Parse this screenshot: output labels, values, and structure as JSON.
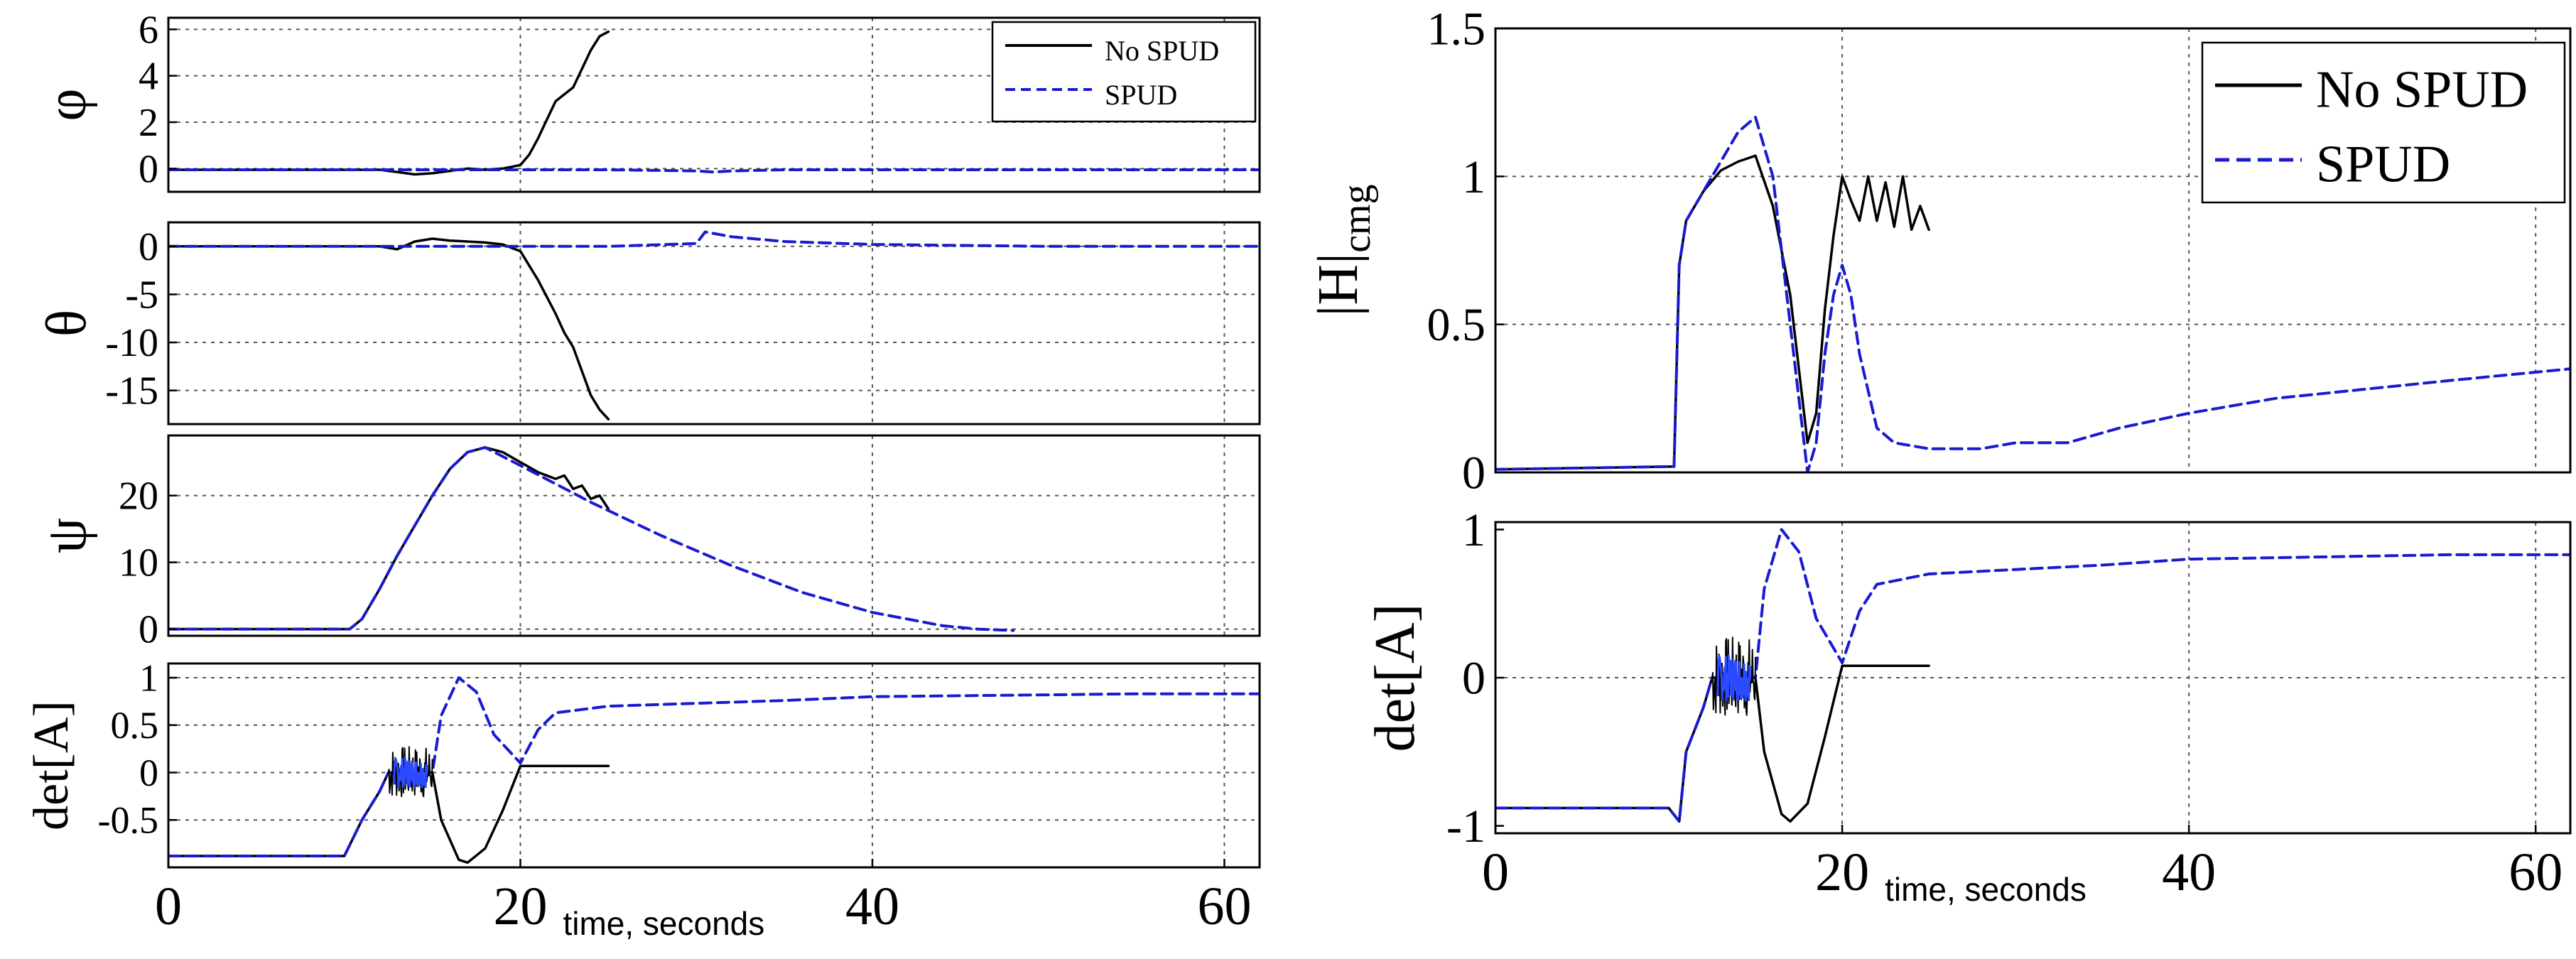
{
  "colors": {
    "no_spud": "#000000",
    "spud": "#1a1ad0",
    "noise": "#2a4bff"
  },
  "legend": [
    "No SPUD",
    "SPUD"
  ],
  "chart_data": [
    {
      "id": "phi",
      "type": "line",
      "ylabel": "φ",
      "xlim": [
        0,
        62
      ],
      "ylim": [
        -1,
        6.5
      ],
      "yticks": [
        6,
        4,
        2,
        0
      ],
      "ytick_labels": [
        "6",
        "4",
        "2",
        "0"
      ],
      "xgrid": [
        20,
        40,
        60
      ],
      "legend": "top-right",
      "series": [
        {
          "name": "No SPUD",
          "style": "solid",
          "x": [
            0,
            12,
            13,
            14,
            15,
            16,
            17,
            18,
            19,
            20,
            20.5,
            21,
            21.5,
            22,
            22.5,
            23,
            23.5,
            24,
            24.5,
            25
          ],
          "y": [
            -0.05,
            -0.05,
            -0.15,
            -0.25,
            -0.2,
            -0.1,
            0.0,
            -0.05,
            0.0,
            0.15,
            0.6,
            1.3,
            2.1,
            2.9,
            3.2,
            3.5,
            4.3,
            5.1,
            5.7,
            5.9
          ]
        },
        {
          "name": "SPUD",
          "style": "dashed",
          "x": [
            0,
            25,
            30,
            31,
            32,
            35,
            40,
            50,
            62
          ],
          "y": [
            -0.05,
            -0.05,
            -0.1,
            -0.15,
            -0.1,
            -0.05,
            -0.05,
            -0.05,
            -0.05
          ]
        }
      ]
    },
    {
      "id": "theta",
      "type": "line",
      "ylabel": "θ",
      "xlim": [
        0,
        62
      ],
      "ylim": [
        -18.5,
        2.5
      ],
      "yticks": [
        0,
        -5,
        -10,
        -15
      ],
      "ytick_labels": [
        "0",
        "-5",
        "-10",
        "-15"
      ],
      "xgrid": [
        20,
        40,
        60
      ],
      "series": [
        {
          "name": "No SPUD",
          "style": "solid",
          "x": [
            0,
            12,
            13,
            14,
            15,
            16,
            17,
            18,
            19,
            20,
            21,
            22,
            22.5,
            23,
            23.5,
            24,
            24.5,
            25
          ],
          "y": [
            0,
            0,
            -0.3,
            0.5,
            0.8,
            0.6,
            0.5,
            0.4,
            0.2,
            -0.5,
            -3.5,
            -7,
            -9,
            -10.5,
            -13,
            -15.5,
            -17,
            -18
          ]
        },
        {
          "name": "SPUD",
          "style": "dashed",
          "x": [
            0,
            20,
            25,
            30,
            30.5,
            32,
            35,
            40,
            50,
            62
          ],
          "y": [
            0,
            0,
            0,
            0.3,
            1.5,
            1.0,
            0.5,
            0.2,
            0,
            0
          ]
        }
      ]
    },
    {
      "id": "psi",
      "type": "line",
      "ylabel": "ψ",
      "xlim": [
        0,
        62
      ],
      "ylim": [
        -1,
        29
      ],
      "yticks": [
        20,
        10,
        0
      ],
      "ytick_labels": [
        "20",
        "10",
        "0"
      ],
      "xgrid": [
        20,
        40,
        60
      ],
      "series": [
        {
          "name": "No SPUD",
          "style": "solid",
          "x": [
            0,
            10.3,
            11,
            12,
            13,
            14,
            15,
            16,
            17,
            18,
            19,
            20,
            21,
            22,
            22.5,
            23,
            23.5,
            24,
            24.5,
            25
          ],
          "y": [
            0,
            0,
            1.5,
            6,
            11,
            15.5,
            20,
            24,
            26.5,
            27.2,
            26.5,
            25,
            23.5,
            22.5,
            23,
            21,
            21.5,
            19.5,
            20,
            18
          ]
        },
        {
          "name": "SPUD",
          "style": "dashed",
          "x": [
            0,
            10.3,
            11,
            12,
            13,
            14,
            15,
            16,
            17,
            18,
            20,
            24,
            28,
            32,
            36,
            40,
            44,
            46,
            48
          ],
          "y": [
            0,
            0,
            1.5,
            6,
            11,
            15.5,
            20,
            24,
            26.5,
            27.2,
            24.5,
            19,
            14,
            9.5,
            5.5,
            2.5,
            0.5,
            0,
            -0.2
          ]
        }
      ]
    },
    {
      "id": "detA_left",
      "type": "line",
      "ylabel": "det[A]",
      "xlim": [
        0,
        62
      ],
      "ylim": [
        -1.0,
        1.15
      ],
      "yticks": [
        1,
        0.5,
        0,
        -0.5
      ],
      "ytick_labels": [
        "1",
        "0.5",
        "0",
        "-0.5"
      ],
      "xgrid": [
        20,
        40,
        60
      ],
      "xticks": [
        0,
        20,
        40,
        60
      ],
      "xtick_labels": [
        "0",
        "20",
        "40",
        "60"
      ],
      "xlabel": "time, seconds",
      "series": [
        {
          "name": "No SPUD",
          "style": "solid",
          "x": [
            0,
            10,
            11,
            12,
            12.5,
            15,
            15.5,
            16.5,
            17,
            18,
            19,
            20,
            25
          ],
          "y": [
            -0.88,
            -0.88,
            -0.5,
            -0.2,
            0.0,
            0.0,
            -0.5,
            -0.92,
            -0.95,
            -0.8,
            -0.4,
            0.07,
            0.07
          ]
        },
        {
          "name": "SPUD",
          "style": "dashed",
          "x": [
            0,
            10,
            11,
            12,
            12.5,
            15,
            15.5,
            16.5,
            17.5,
            18.5,
            20,
            21,
            22,
            25,
            30,
            35,
            40,
            45,
            50,
            55,
            62
          ],
          "y": [
            -0.88,
            -0.88,
            -0.5,
            -0.2,
            0.0,
            0.0,
            0.6,
            1.0,
            0.85,
            0.4,
            0.1,
            0.45,
            0.63,
            0.7,
            0.73,
            0.76,
            0.8,
            0.81,
            0.82,
            0.83,
            0.83
          ]
        }
      ],
      "noise_burst": {
        "x0": 12.5,
        "x1": 15.0,
        "amplitude": 0.28
      }
    },
    {
      "id": "H_cmg",
      "type": "line",
      "ylabel": "|H|cmg",
      "xlim": [
        0,
        62
      ],
      "ylim": [
        0,
        1.5
      ],
      "yticks": [
        1.5,
        1,
        0.5,
        0
      ],
      "ytick_labels": [
        "1.5",
        "1",
        "0.5",
        "0"
      ],
      "xgrid": [
        20,
        40,
        60
      ],
      "ygrid": [
        0.5,
        1.0
      ],
      "legend": "top-right",
      "series": [
        {
          "name": "No SPUD",
          "style": "solid",
          "x": [
            0,
            10.3,
            10.6,
            11,
            12,
            13,
            14,
            15,
            16,
            17,
            18,
            18.5,
            19,
            19.5,
            20,
            20.5,
            21,
            21.5,
            22,
            22.5,
            23,
            23.5,
            24,
            24.5,
            25
          ],
          "y": [
            0.01,
            0.02,
            0.7,
            0.85,
            0.95,
            1.02,
            1.05,
            1.07,
            0.9,
            0.6,
            0.1,
            0.2,
            0.55,
            0.8,
            1.0,
            0.92,
            0.85,
            1.0,
            0.85,
            0.98,
            0.83,
            1.0,
            0.82,
            0.9,
            0.82
          ]
        },
        {
          "name": "SPUD",
          "style": "dashed",
          "x": [
            0,
            10.3,
            10.6,
            11,
            12,
            13,
            14,
            15,
            16,
            17,
            18,
            18.5,
            19,
            19.5,
            20,
            20.5,
            21,
            22,
            23,
            25,
            28,
            30,
            33,
            36,
            40,
            45,
            50,
            55,
            62
          ],
          "y": [
            0.01,
            0.02,
            0.7,
            0.85,
            0.95,
            1.05,
            1.15,
            1.2,
            1.0,
            0.5,
            0.0,
            0.1,
            0.4,
            0.6,
            0.7,
            0.6,
            0.4,
            0.15,
            0.1,
            0.08,
            0.08,
            0.1,
            0.1,
            0.15,
            0.2,
            0.25,
            0.28,
            0.31,
            0.35
          ]
        }
      ]
    },
    {
      "id": "detA_right",
      "type": "line",
      "ylabel": "det[A]",
      "xlim": [
        0,
        62
      ],
      "ylim": [
        -1.05,
        1.05
      ],
      "yticks": [
        1,
        0,
        -1
      ],
      "ytick_labels": [
        "1",
        "0",
        "-1"
      ],
      "xgrid": [
        20,
        40,
        60
      ],
      "ygrid": [
        0
      ],
      "xticks": [
        0,
        20,
        40,
        60
      ],
      "xtick_labels": [
        "0",
        "20",
        "40",
        "60"
      ],
      "xlabel": "time, seconds",
      "series": [
        {
          "name": "No SPUD",
          "style": "solid",
          "x": [
            0,
            10,
            10.6,
            11,
            12,
            12.5,
            15,
            15.5,
            16.5,
            17,
            18,
            19,
            20,
            25
          ],
          "y": [
            -0.88,
            -0.88,
            -0.97,
            -0.5,
            -0.2,
            0.0,
            0.0,
            -0.5,
            -0.92,
            -0.97,
            -0.85,
            -0.4,
            0.08,
            0.08
          ]
        },
        {
          "name": "SPUD",
          "style": "dashed",
          "x": [
            0,
            10,
            10.6,
            11,
            12,
            12.5,
            15,
            15.5,
            16.5,
            17.5,
            18.5,
            20,
            21,
            22,
            25,
            30,
            35,
            40,
            45,
            50,
            55,
            62
          ],
          "y": [
            -0.88,
            -0.88,
            -0.97,
            -0.5,
            -0.2,
            0.0,
            0.0,
            0.6,
            1.0,
            0.85,
            0.4,
            0.1,
            0.45,
            0.63,
            0.7,
            0.73,
            0.76,
            0.8,
            0.81,
            0.82,
            0.83,
            0.83
          ]
        }
      ],
      "noise_burst": {
        "x0": 12.5,
        "x1": 15.0,
        "amplitude": 0.28
      }
    }
  ]
}
